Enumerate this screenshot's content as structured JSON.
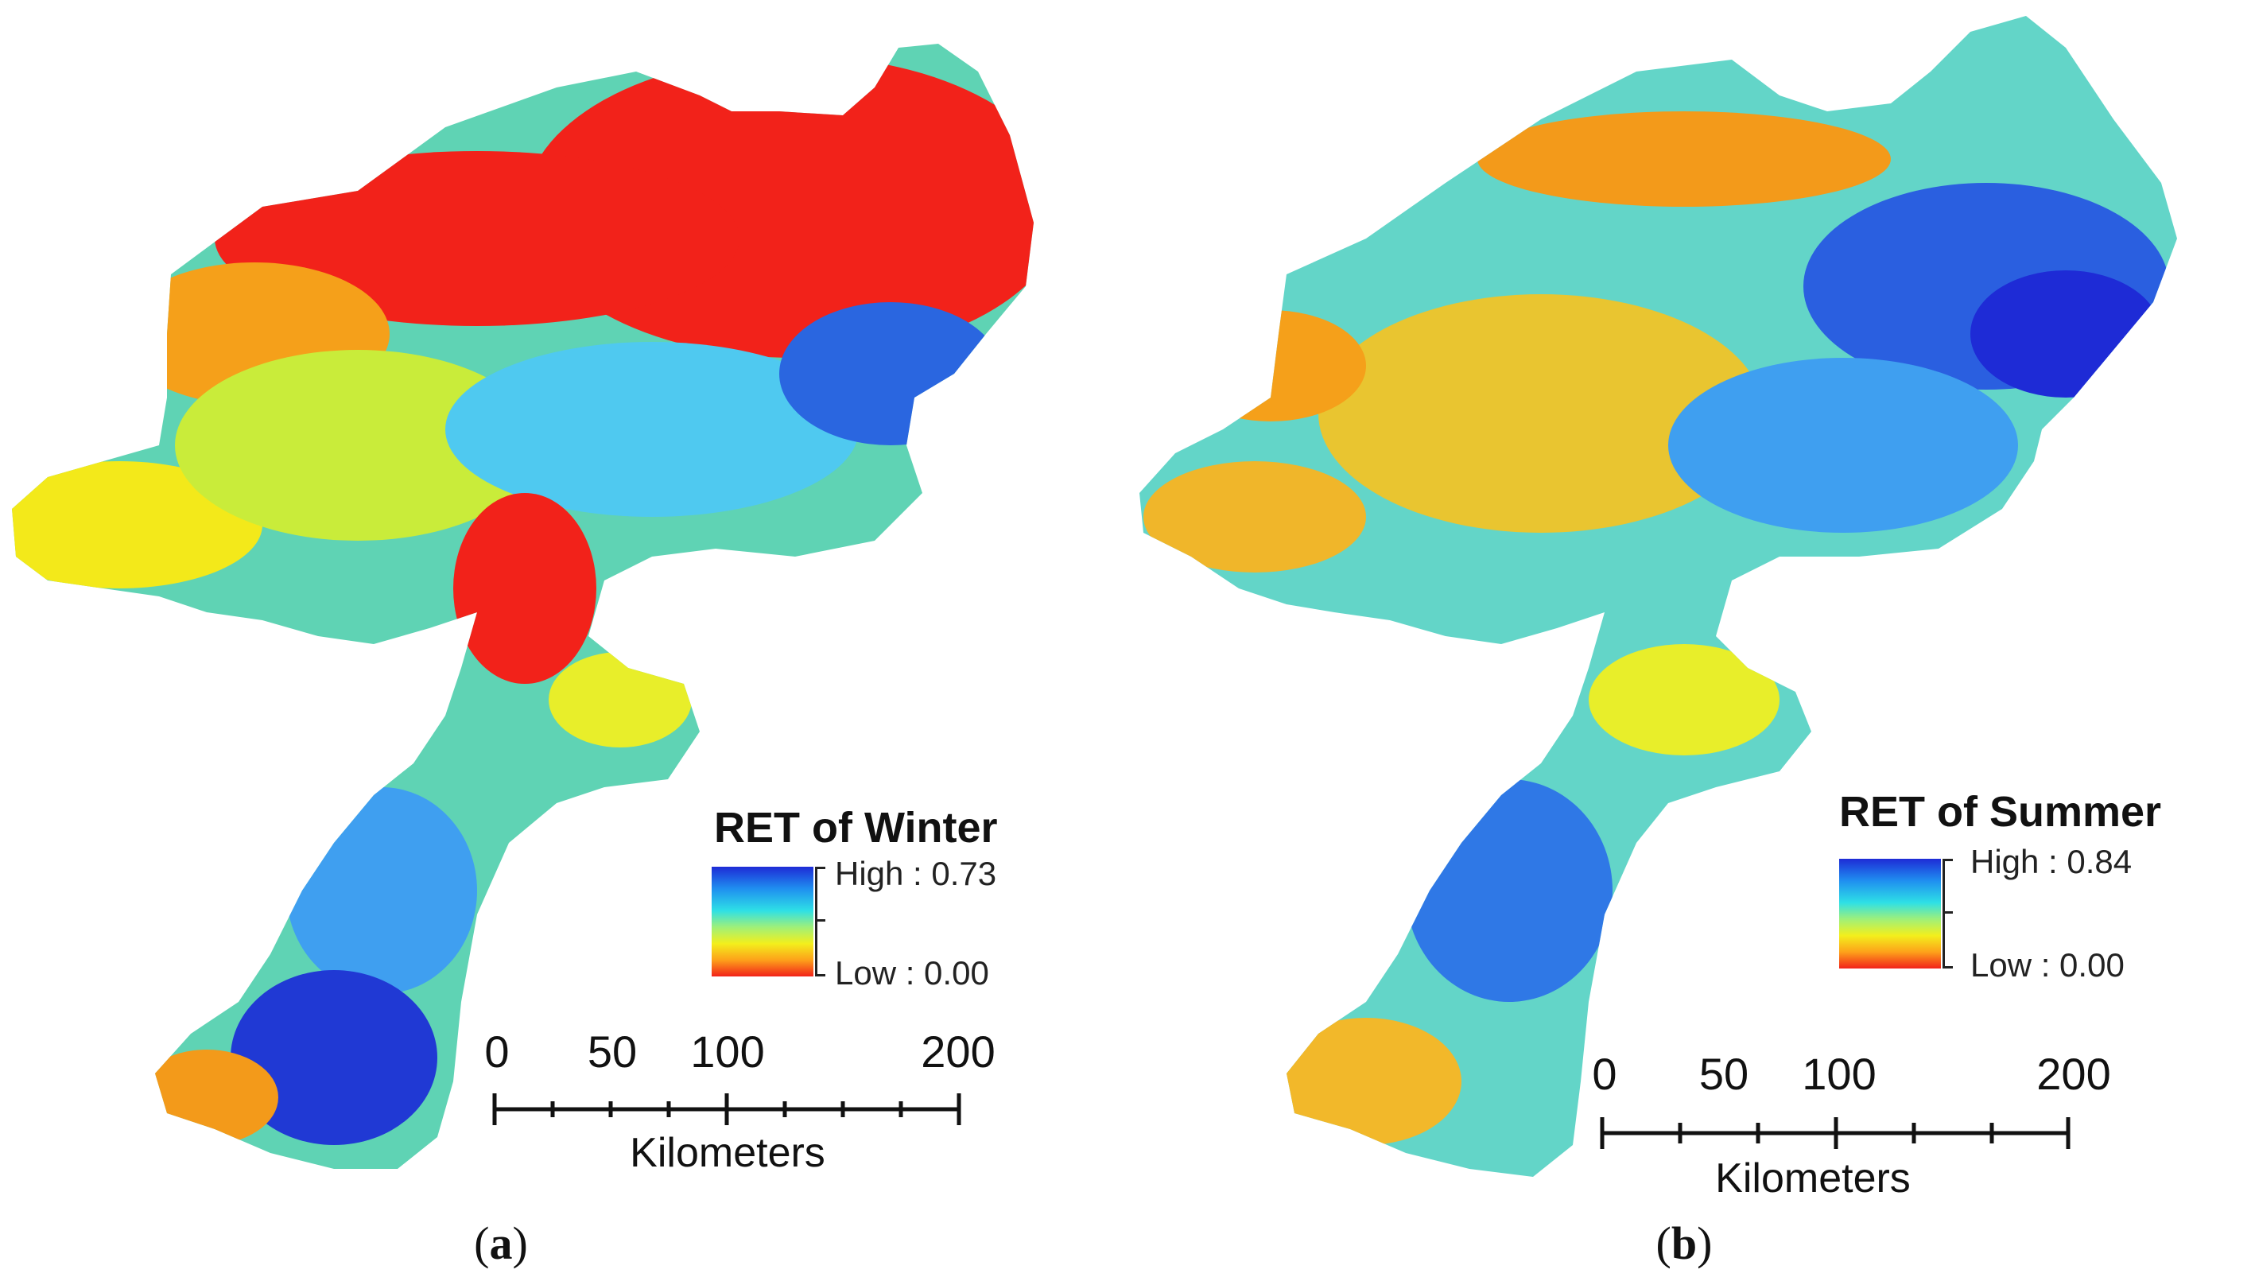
{
  "colors": {
    "high": "#1e2bd6",
    "mid_high": "#2ee0e6",
    "mid": "#f3ef1c",
    "low": "#f2221a"
  },
  "panels": [
    {
      "id": "a",
      "legend_title": "RET of Winter",
      "legend_high": "High : 0.73",
      "legend_low": "Low : 0.00",
      "scale_ticks": [
        "0",
        "50",
        "100",
        "200"
      ],
      "scale_unit": "Kilometers",
      "caption_open": "(",
      "caption_letter": "a",
      "caption_close": ")"
    },
    {
      "id": "b",
      "legend_title": "RET of Summer",
      "legend_high": "High : 0.84",
      "legend_low": "Low : 0.00",
      "scale_ticks": [
        "0",
        "50",
        "100",
        "200"
      ],
      "scale_unit": "Kilometers",
      "caption_open": "(",
      "caption_letter": "b",
      "caption_close": ")"
    }
  ]
}
